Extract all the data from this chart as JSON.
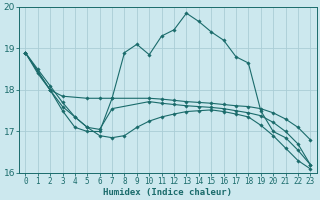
{
  "xlabel": "Humidex (Indice chaleur)",
  "xlim": [
    -0.5,
    23.5
  ],
  "ylim": [
    16,
    20
  ],
  "yticks": [
    16,
    17,
    18,
    19,
    20
  ],
  "xticks": [
    0,
    1,
    2,
    3,
    4,
    5,
    6,
    7,
    8,
    9,
    10,
    11,
    12,
    13,
    14,
    15,
    16,
    17,
    18,
    19,
    20,
    21,
    22,
    23
  ],
  "bg_color": "#cce8ee",
  "grid_color": "#aacdd6",
  "line_color": "#1a6b6b",
  "lines": [
    {
      "x": [
        0,
        1,
        2,
        3,
        4,
        5,
        6,
        7,
        8,
        9,
        10,
        11,
        12,
        13,
        14,
        15,
        16,
        17,
        18,
        19,
        20,
        21,
        22,
        23
      ],
      "y": [
        18.9,
        18.4,
        18.0,
        17.5,
        17.1,
        17.0,
        17.0,
        17.8,
        18.9,
        19.1,
        18.85,
        19.3,
        19.45,
        19.85,
        19.65,
        19.4,
        19.2,
        18.8,
        18.65,
        17.5,
        17.0,
        16.85,
        16.55,
        16.2
      ]
    },
    {
      "x": [
        0,
        2,
        3,
        5,
        6,
        7,
        10,
        11,
        12,
        13,
        14,
        15,
        16,
        17,
        18,
        19,
        20,
        21,
        22,
        23
      ],
      "y": [
        18.9,
        18.0,
        17.85,
        17.8,
        17.8,
        17.8,
        17.8,
        17.78,
        17.75,
        17.72,
        17.7,
        17.68,
        17.65,
        17.62,
        17.6,
        17.55,
        17.45,
        17.3,
        17.1,
        16.8
      ]
    },
    {
      "x": [
        0,
        2,
        3,
        4,
        5,
        6,
        7,
        10,
        11,
        12,
        13,
        14,
        15,
        16,
        17,
        18,
        19,
        20,
        21,
        22,
        23
      ],
      "y": [
        18.9,
        18.0,
        17.6,
        17.35,
        17.1,
        17.05,
        17.55,
        17.72,
        17.68,
        17.65,
        17.62,
        17.6,
        17.58,
        17.55,
        17.5,
        17.45,
        17.38,
        17.22,
        17.0,
        16.7,
        16.2
      ]
    },
    {
      "x": [
        0,
        1,
        2,
        3,
        4,
        5,
        6,
        7,
        8,
        9,
        10,
        11,
        12,
        13,
        14,
        15,
        16,
        17,
        18,
        19,
        20,
        21,
        22,
        23
      ],
      "y": [
        18.9,
        18.5,
        18.1,
        17.7,
        17.35,
        17.1,
        16.9,
        16.85,
        16.9,
        17.1,
        17.25,
        17.35,
        17.42,
        17.48,
        17.5,
        17.52,
        17.48,
        17.42,
        17.35,
        17.15,
        16.9,
        16.6,
        16.3,
        16.1
      ]
    }
  ]
}
